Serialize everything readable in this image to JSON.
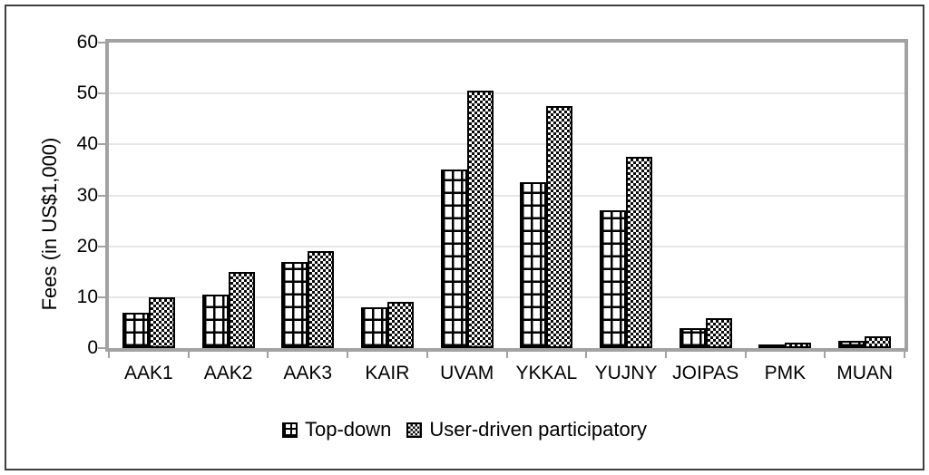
{
  "chart_data": {
    "type": "bar",
    "title": "",
    "categories": [
      "AAK1",
      "AAK2",
      "AAK3",
      "KAIR",
      "UVAM",
      "YKKAL",
      "YUJNY",
      "JOIPAS",
      "PMK",
      "MUAN"
    ],
    "series": [
      {
        "name": "Top-down",
        "pattern": "grid-hatch",
        "values": [
          7,
          10.5,
          17,
          8,
          35,
          32.5,
          27,
          4,
          0.5,
          1.5
        ]
      },
      {
        "name": "User-driven participatory",
        "pattern": "checkerboard",
        "values": [
          10,
          15,
          19,
          9,
          50.5,
          47.5,
          37.5,
          5.8,
          1,
          2.3
        ]
      }
    ],
    "xlabel": "",
    "ylabel": "Fees (in US$1,000)",
    "ylim": [
      0,
      60
    ],
    "yticks": [
      0,
      10,
      20,
      30,
      40,
      50,
      60
    ],
    "grid": true,
    "legend_position": "bottom"
  },
  "colors": {
    "background": "#ffffff",
    "axis_frame": "#a2a2a2",
    "gridline": "#e6e6e6",
    "bar_outline": "#000000",
    "text": "#000000"
  }
}
